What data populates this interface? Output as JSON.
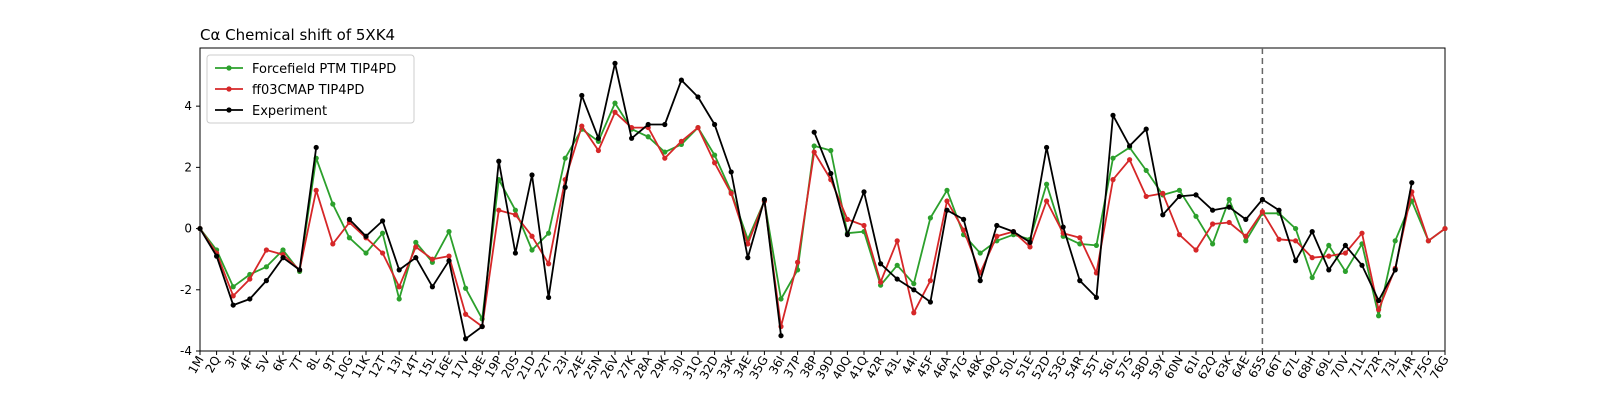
{
  "chart_data": {
    "type": "line",
    "title": "Cα Chemical shift of 5XK4",
    "xlabel": "",
    "ylabel": "",
    "ylim": [
      -4,
      5.9
    ],
    "yticks": [
      -4,
      -2,
      0,
      2,
      4
    ],
    "grid": false,
    "legend_position": "top-left",
    "vline_at_category": "65S",
    "categories": [
      "1M",
      "2Q",
      "3I",
      "4F",
      "5V",
      "6K",
      "7T",
      "8L",
      "9T",
      "10G",
      "11K",
      "12T",
      "13I",
      "14T",
      "15L",
      "16E",
      "17V",
      "18E",
      "19P",
      "20S",
      "21D",
      "22T",
      "23I",
      "24E",
      "25N",
      "26V",
      "27K",
      "28A",
      "29K",
      "30I",
      "31Q",
      "32D",
      "33K",
      "34E",
      "35G",
      "36I",
      "37P",
      "38P",
      "39D",
      "40Q",
      "41Q",
      "42R",
      "43L",
      "44I",
      "45F",
      "46A",
      "47G",
      "48K",
      "49Q",
      "50L",
      "51E",
      "52D",
      "53G",
      "54R",
      "55T",
      "56L",
      "57S",
      "58D",
      "59Y",
      "60N",
      "61I",
      "62Q",
      "63K",
      "64E",
      "65S",
      "66T",
      "67L",
      "68H",
      "69L",
      "70V",
      "71L",
      "72R",
      "73L",
      "74R",
      "75G",
      "76G"
    ],
    "series": [
      {
        "name": "Forcefield PTM TIP4PD",
        "color": "#2ca02c",
        "values": [
          0.0,
          -0.7,
          -1.9,
          -1.5,
          -1.25,
          -0.7,
          -1.4,
          2.3,
          0.8,
          -0.3,
          -0.8,
          -0.15,
          -2.3,
          -0.45,
          -1.1,
          -0.1,
          -1.95,
          -2.95,
          1.6,
          0.6,
          -0.7,
          -0.15,
          2.3,
          3.25,
          2.85,
          4.1,
          3.25,
          3.0,
          2.5,
          2.75,
          3.3,
          2.4,
          1.2,
          -0.35,
          0.9,
          -2.3,
          -1.35,
          2.7,
          2.55,
          -0.15,
          -0.1,
          -1.85,
          -1.2,
          -1.8,
          0.35,
          1.25,
          -0.2,
          -0.8,
          -0.4,
          -0.2,
          -0.35,
          1.45,
          -0.25,
          -0.5,
          -0.55,
          2.3,
          2.65,
          1.9,
          1.1,
          1.25,
          0.4,
          -0.5,
          0.95,
          -0.4,
          0.5,
          0.5,
          0.0,
          -1.6,
          -0.55,
          -1.4,
          -0.5,
          -2.85,
          -0.4,
          0.9,
          -0.4,
          0.0
        ]
      },
      {
        "name": "ff03CMAP TIP4PD",
        "color": "#d62728",
        "values": [
          0.0,
          -0.8,
          -2.2,
          -1.65,
          -0.7,
          -0.85,
          -1.35,
          1.25,
          -0.5,
          0.2,
          -0.3,
          -0.8,
          -1.9,
          -0.6,
          -1.0,
          -0.9,
          -2.8,
          -3.2,
          0.6,
          0.45,
          -0.25,
          -1.15,
          1.6,
          3.35,
          2.55,
          3.8,
          3.3,
          3.3,
          2.3,
          2.85,
          3.3,
          2.15,
          1.15,
          -0.5,
          0.9,
          -3.2,
          -1.1,
          2.5,
          1.6,
          0.3,
          0.1,
          -1.75,
          -0.4,
          -2.75,
          -1.7,
          0.9,
          -0.05,
          -1.45,
          -0.25,
          -0.1,
          -0.6,
          0.9,
          -0.15,
          -0.3,
          -1.45,
          1.6,
          2.25,
          1.05,
          1.15,
          -0.2,
          -0.7,
          0.15,
          0.2,
          -0.25,
          0.55,
          -0.35,
          -0.4,
          -0.95,
          -0.9,
          -0.8,
          -0.15,
          -2.65,
          -1.3,
          1.2,
          -0.4,
          0.0
        ]
      },
      {
        "name": "Experiment",
        "color": "#000000",
        "values": [
          0.0,
          -0.9,
          -2.5,
          -2.3,
          -1.7,
          -0.95,
          -1.35,
          2.65,
          null,
          0.3,
          -0.25,
          0.25,
          -1.35,
          -0.95,
          -1.9,
          -1.05,
          -3.6,
          -3.2,
          2.2,
          -0.8,
          1.75,
          -2.25,
          1.35,
          4.35,
          2.95,
          5.4,
          2.95,
          3.4,
          3.4,
          4.85,
          4.3,
          3.4,
          1.85,
          -0.95,
          0.95,
          -3.5,
          null,
          3.15,
          1.8,
          -0.2,
          1.2,
          -1.15,
          -1.65,
          -2.0,
          -2.4,
          0.6,
          0.3,
          -1.7,
          0.1,
          -0.1,
          -0.45,
          2.65,
          0.05,
          -1.7,
          -2.25,
          3.7,
          2.7,
          3.25,
          0.45,
          1.05,
          1.1,
          0.6,
          0.7,
          0.3,
          0.95,
          0.6,
          -1.05,
          -0.1,
          -1.35,
          -0.55,
          -1.2,
          -2.35,
          -1.35,
          1.5,
          null,
          null
        ]
      }
    ]
  }
}
